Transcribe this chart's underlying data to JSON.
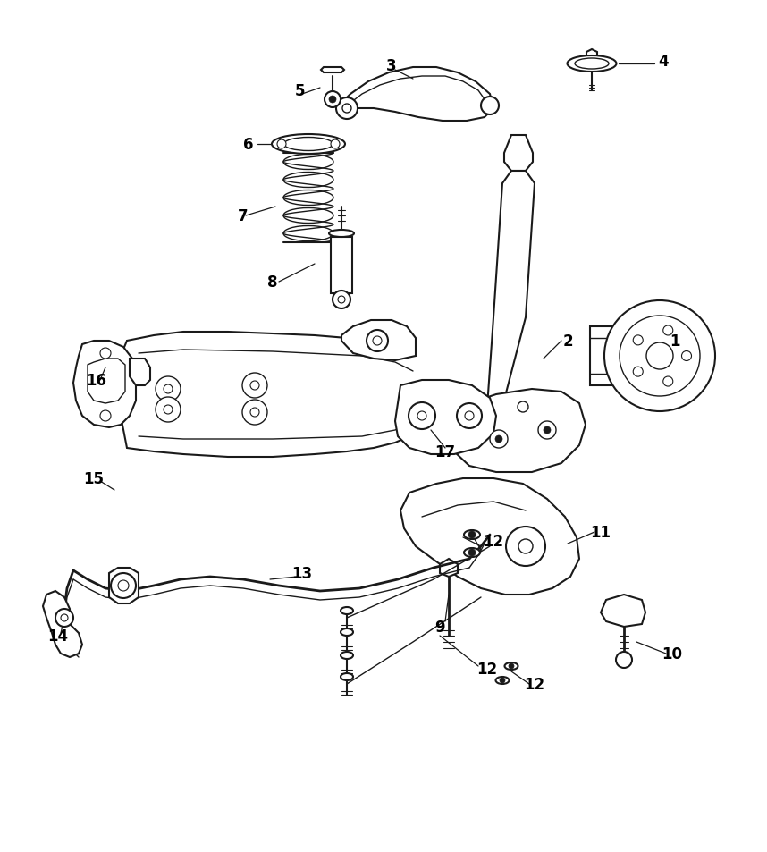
{
  "background_color": "#ffffff",
  "line_color": "#1a1a1a",
  "fig_width": 8.58,
  "fig_height": 9.54,
  "dpi": 100,
  "label_fontsize": 12,
  "label_fontweight": "bold",
  "labels": [
    [
      "1",
      7.55,
      5.62
    ],
    [
      "2",
      6.35,
      5.62
    ],
    [
      "3",
      4.42,
      8.72
    ],
    [
      "4",
      7.38,
      8.78
    ],
    [
      "5",
      3.42,
      8.42
    ],
    [
      "6",
      2.95,
      7.88
    ],
    [
      "7",
      2.82,
      7.08
    ],
    [
      "8",
      3.18,
      6.35
    ],
    [
      "9",
      5.05,
      2.52
    ],
    [
      "10",
      7.52,
      2.18
    ],
    [
      "11",
      6.72,
      3.52
    ],
    [
      "12",
      5.48,
      3.38
    ],
    [
      "12",
      5.48,
      2.05
    ],
    [
      "12",
      6.05,
      1.88
    ],
    [
      "13",
      3.38,
      3.05
    ],
    [
      "14",
      0.68,
      2.58
    ],
    [
      "15",
      1.08,
      4.12
    ],
    [
      "16",
      1.15,
      5.25
    ],
    [
      "17",
      5.05,
      4.48
    ]
  ]
}
